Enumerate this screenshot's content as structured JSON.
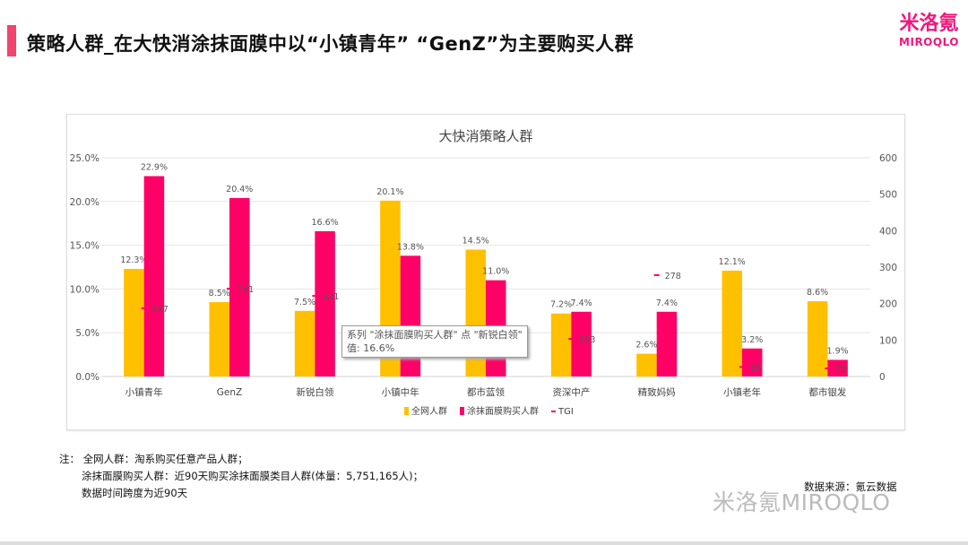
{
  "header": {
    "title": "策略人群_在大快消涂抹面膜中以“小镇青年”  “GenZ”为主要购买人群"
  },
  "logo": {
    "cn": "米洛氪",
    "en": "MIROQLO"
  },
  "chart_data": {
    "type": "bar",
    "title": "大快消策略人群",
    "categories": [
      "小镇青年",
      "GenZ",
      "新锐白领",
      "小镇中年",
      "都市蓝领",
      "资深中产",
      "精致妈妈",
      "小镇老年",
      "都市银发"
    ],
    "series": [
      {
        "name": "全网人群",
        "type": "bar",
        "axis": "left",
        "color": "#ffc000",
        "values": [
          12.3,
          8.5,
          7.5,
          20.1,
          14.5,
          7.2,
          2.6,
          12.1,
          8.6
        ],
        "labels": [
          "12.3%",
          "8.5%",
          "7.5%",
          "20.1%",
          "14.5%",
          "7.2%",
          "2.6%",
          "12.1%",
          "8.6%"
        ]
      },
      {
        "name": "涂抹面膜购买人群",
        "type": "bar",
        "axis": "left",
        "color": "#ff0066",
        "values": [
          22.9,
          20.4,
          16.6,
          13.8,
          11.0,
          7.4,
          7.4,
          3.2,
          1.9
        ],
        "labels": [
          "22.9%",
          "20.4%",
          "16.6%",
          "13.8%",
          "11.0%",
          "7.4%",
          "7.4%",
          "3.2%",
          "1.9%"
        ]
      },
      {
        "name": "TGI",
        "type": "marker",
        "axis": "right",
        "color": "#ff0066",
        "values": [
          187,
          241,
          221,
          null,
          null,
          103,
          278,
          26,
          22
        ]
      }
    ],
    "left_axis": {
      "ylim": [
        0,
        25
      ],
      "ticks": [
        "0.0%",
        "5.0%",
        "10.0%",
        "15.0%",
        "20.0%",
        "25.0%"
      ]
    },
    "right_axis": {
      "ylim": [
        0,
        600
      ],
      "ticks": [
        "0",
        "100",
        "200",
        "300",
        "400",
        "500",
        "600"
      ]
    },
    "grid": true,
    "legend": "bottom"
  },
  "tooltip": {
    "line1": "系列 \"涂抹面膜购买人群\" 点 \"新锐白领\"",
    "line2": "值: 16.6%"
  },
  "notes": {
    "line1": "注：  全网人群：淘系购买任意产品人群；",
    "line2": "涂抹面膜购买人群：近90天购买涂抹面膜类目人群(体量：5,751,165人)；",
    "line3": "数据时间跨度为近90天"
  },
  "source": "数据来源：氪云数据",
  "watermark": "米洛氪MIROQLO"
}
